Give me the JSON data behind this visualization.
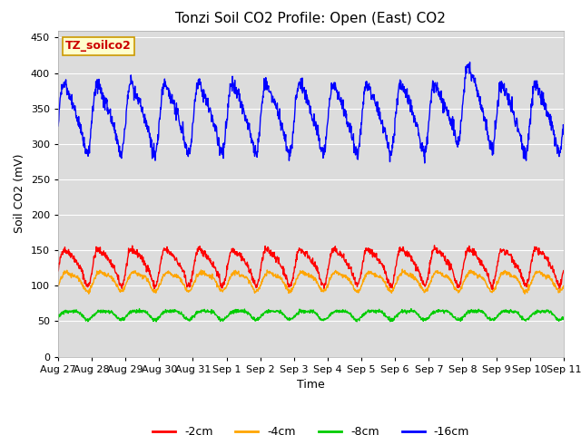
{
  "title": "Tonzi Soil CO2 Profile: Open (East) CO2",
  "ylabel": "Soil CO2 (mV)",
  "xlabel": "Time",
  "annotation": "TZ_soilco2",
  "ylim": [
    0,
    460
  ],
  "yticks": [
    0,
    50,
    100,
    150,
    200,
    250,
    300,
    350,
    400,
    450
  ],
  "legend_labels": [
    "-2cm",
    "-4cm",
    "-8cm",
    "-16cm"
  ],
  "legend_colors": [
    "#ff0000",
    "#ffa500",
    "#00cc00",
    "#0000ff"
  ],
  "bg_color": "#dcdcdc",
  "fig_bg_color": "#ffffff",
  "annotation_bg": "#ffffcc",
  "annotation_border": "#cc9900",
  "annotation_text_color": "#cc0000",
  "title_fontsize": 11,
  "axis_label_fontsize": 9,
  "tick_fontsize": 8,
  "legend_fontsize": 9,
  "n_points": 1500,
  "time_start_days": 0,
  "time_end_days": 15,
  "x_tick_labels": [
    "Aug 27",
    "Aug 28",
    "Aug 29",
    "Aug 30",
    "Aug 31",
    "Sep 1",
    "Sep 2",
    "Sep 3",
    "Sep 4",
    "Sep 5",
    "Sep 6",
    "Sep 7",
    "Sep 8",
    "Sep 9",
    "Sep 10",
    "Sep 11"
  ],
  "x_tick_positions": [
    0,
    1,
    2,
    3,
    4,
    5,
    6,
    7,
    8,
    9,
    10,
    11,
    12,
    13,
    14,
    15
  ],
  "line_width": 1.0,
  "series_2cm_base": 130,
  "series_4cm_base": 108,
  "series_8cm_base": 60,
  "series_16cm_base": 340
}
